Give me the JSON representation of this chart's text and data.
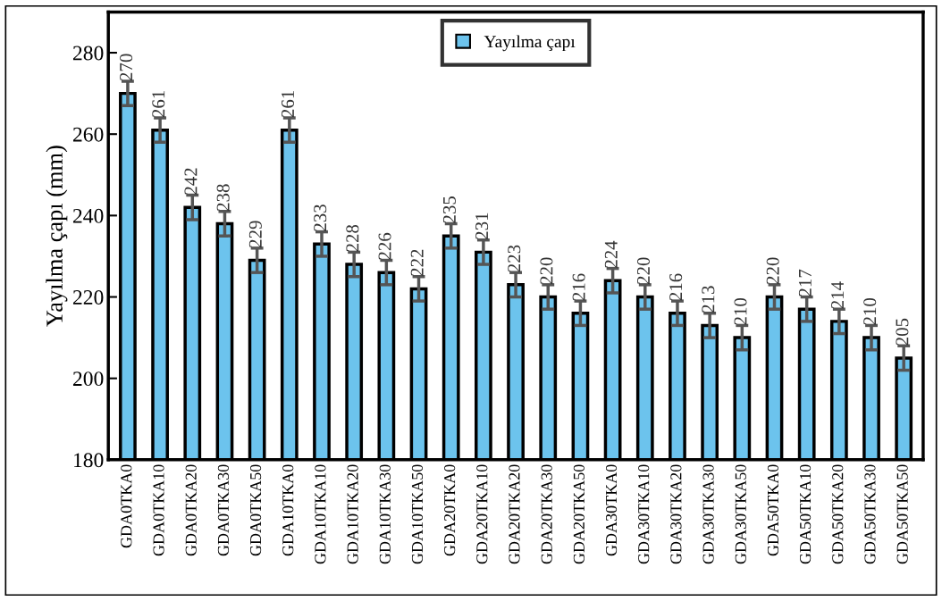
{
  "chart_data": {
    "type": "bar",
    "ylabel": "Yayılma çapı (mm)",
    "categories": [
      "GDA0TKA0",
      "GDA0TKA10",
      "GDA0TKA20",
      "GDA0TKA30",
      "GDA0TKA50",
      "GDA10TKA0",
      "GDA10TKA10",
      "GDA10TKA20",
      "GDA10TKA30",
      "GDA10TKA50",
      "GDA20TKA0",
      "GDA20TKA10",
      "GDA20TKA20",
      "GDA20TKA30",
      "GDA20TKA50",
      "GDA30TKA0",
      "GDA30TKA10",
      "GDA30TKA20",
      "GDA30TKA30",
      "GDA30TKA50",
      "GDA50TKA0",
      "GDA50TKA10",
      "GDA50TKA20",
      "GDA50TKA30",
      "GDA50TKA50"
    ],
    "series": [
      {
        "name": "Yayılma çapı",
        "color": "#6cc3ed",
        "values": [
          270,
          261,
          242,
          238,
          229,
          261,
          233,
          228,
          226,
          222,
          235,
          231,
          223,
          220,
          216,
          224,
          220,
          216,
          213,
          210,
          220,
          217,
          214,
          210,
          205
        ],
        "errors": [
          3,
          3,
          3,
          3,
          3,
          3,
          3,
          3,
          3,
          3,
          3,
          3,
          3,
          3,
          3,
          3,
          3,
          3,
          3,
          3,
          3,
          3,
          3,
          3,
          3
        ]
      }
    ],
    "data_labels": true,
    "ylim": [
      180,
      290
    ],
    "yticks": [
      180,
      200,
      220,
      240,
      260,
      280
    ],
    "grid": false,
    "legend": "top"
  }
}
